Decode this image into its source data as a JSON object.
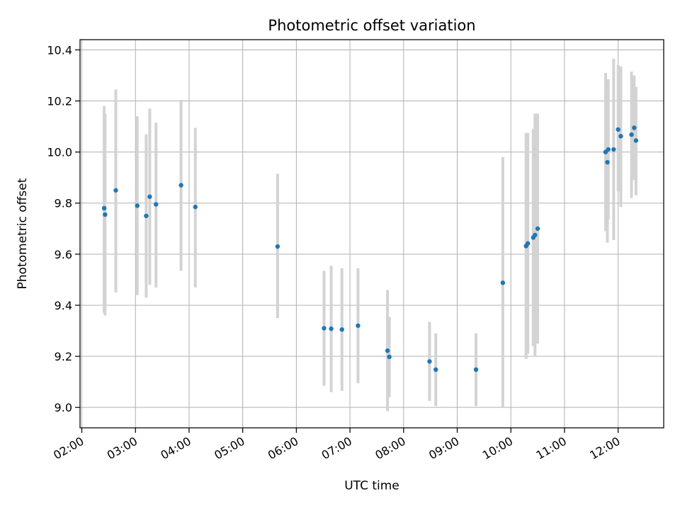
{
  "chart_data": {
    "type": "scatter",
    "title": "Photometric offset variation",
    "xlabel": "UTC time",
    "ylabel": "Photometric offset",
    "xlim": [
      "01:58",
      "12:51"
    ],
    "ylim": [
      8.92,
      10.44
    ],
    "x_ticks": [
      "02:00",
      "03:00",
      "04:00",
      "05:00",
      "06:00",
      "07:00",
      "08:00",
      "09:00",
      "10:00",
      "11:00",
      "12:00"
    ],
    "y_ticks": [
      9.0,
      9.2,
      9.4,
      9.6,
      9.8,
      10.0,
      10.2,
      10.4
    ],
    "y_tick_labels": [
      "9.0",
      "9.2",
      "9.4",
      "9.6",
      "9.8",
      "10.0",
      "10.2",
      "10.4"
    ],
    "grid": true,
    "marker_color": "#1f77b4",
    "errorbar_color": "#d3d3d3",
    "points": [
      {
        "x": "02:25",
        "y": 9.78,
        "lo": 9.37,
        "hi": 10.18
      },
      {
        "x": "02:26",
        "y": 9.755,
        "lo": 9.36,
        "hi": 10.15
      },
      {
        "x": "02:38",
        "y": 9.85,
        "lo": 9.45,
        "hi": 10.245
      },
      {
        "x": "03:02",
        "y": 9.79,
        "lo": 9.44,
        "hi": 10.14
      },
      {
        "x": "03:12",
        "y": 9.75,
        "lo": 9.43,
        "hi": 10.07
      },
      {
        "x": "03:16",
        "y": 9.825,
        "lo": 9.48,
        "hi": 10.17
      },
      {
        "x": "03:23",
        "y": 9.795,
        "lo": 9.47,
        "hi": 10.115
      },
      {
        "x": "03:51",
        "y": 9.87,
        "lo": 9.535,
        "hi": 10.205
      },
      {
        "x": "04:07",
        "y": 9.785,
        "lo": 9.47,
        "hi": 10.095
      },
      {
        "x": "05:39",
        "y": 9.63,
        "lo": 9.35,
        "hi": 9.915
      },
      {
        "x": "06:31",
        "y": 9.31,
        "lo": 9.085,
        "hi": 9.535
      },
      {
        "x": "06:39",
        "y": 9.308,
        "lo": 9.06,
        "hi": 9.555
      },
      {
        "x": "06:51",
        "y": 9.305,
        "lo": 9.065,
        "hi": 9.545
      },
      {
        "x": "07:09",
        "y": 9.32,
        "lo": 9.095,
        "hi": 9.545
      },
      {
        "x": "07:42",
        "y": 9.222,
        "lo": 8.985,
        "hi": 9.46
      },
      {
        "x": "07:44",
        "y": 9.198,
        "lo": 9.04,
        "hi": 9.355
      },
      {
        "x": "08:29",
        "y": 9.18,
        "lo": 9.025,
        "hi": 9.335
      },
      {
        "x": "08:36",
        "y": 9.148,
        "lo": 9.005,
        "hi": 9.29
      },
      {
        "x": "09:21",
        "y": 9.148,
        "lo": 9.005,
        "hi": 9.29
      },
      {
        "x": "09:51",
        "y": 9.488,
        "lo": 9.0,
        "hi": 9.98
      },
      {
        "x": "10:17",
        "y": 9.632,
        "lo": 9.19,
        "hi": 10.075
      },
      {
        "x": "10:19",
        "y": 9.642,
        "lo": 9.21,
        "hi": 10.075
      },
      {
        "x": "10:25",
        "y": 9.665,
        "lo": 9.24,
        "hi": 10.09
      },
      {
        "x": "10:27",
        "y": 9.675,
        "lo": 9.2,
        "hi": 10.15
      },
      {
        "x": "10:30",
        "y": 9.7,
        "lo": 9.25,
        "hi": 10.15
      },
      {
        "x": "11:46",
        "y": 10.0,
        "lo": 9.69,
        "hi": 10.31
      },
      {
        "x": "11:48",
        "y": 9.96,
        "lo": 9.645,
        "hi": 10.28
      },
      {
        "x": "11:49",
        "y": 10.01,
        "lo": 9.735,
        "hi": 10.285
      },
      {
        "x": "11:55",
        "y": 10.01,
        "lo": 9.655,
        "hi": 10.365
      },
      {
        "x": "12:00",
        "y": 10.088,
        "lo": 9.845,
        "hi": 10.34
      },
      {
        "x": "12:03",
        "y": 10.062,
        "lo": 9.785,
        "hi": 10.335
      },
      {
        "x": "12:15",
        "y": 10.068,
        "lo": 9.82,
        "hi": 10.315
      },
      {
        "x": "12:18",
        "y": 10.095,
        "lo": 9.89,
        "hi": 10.3
      },
      {
        "x": "12:20",
        "y": 10.045,
        "lo": 9.83,
        "hi": 10.255
      }
    ]
  }
}
